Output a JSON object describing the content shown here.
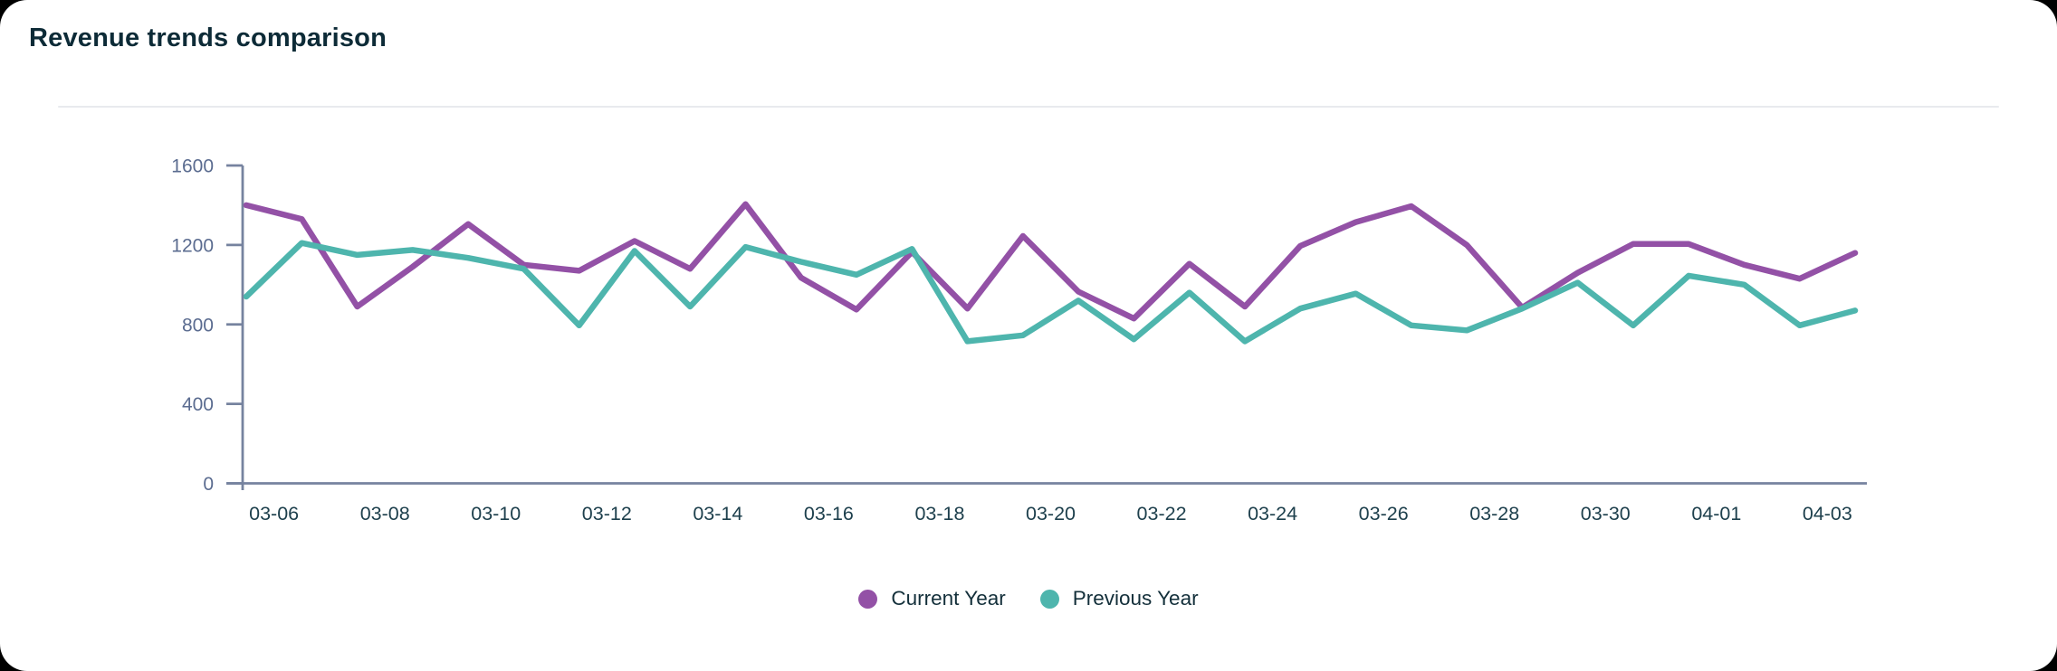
{
  "card": {
    "title": "Revenue trends comparison"
  },
  "chart_data": {
    "type": "line",
    "title": "Revenue trends comparison",
    "xlabel": "",
    "ylabel": "",
    "ylim": [
      0,
      1600
    ],
    "yticks": [
      0,
      400,
      800,
      1200,
      1600
    ],
    "grid": false,
    "legend_position": "bottom",
    "x_label_interval": 2,
    "x_tick_labels": [
      "03-06",
      "03-08",
      "03-10",
      "03-12",
      "03-14",
      "03-16",
      "03-18",
      "03-20",
      "03-22",
      "03-24",
      "03-26",
      "03-28",
      "03-30",
      "04-01",
      "04-03"
    ],
    "x": [
      "03-06",
      "03-07",
      "03-08",
      "03-09",
      "03-10",
      "03-11",
      "03-12",
      "03-13",
      "03-14",
      "03-15",
      "03-16",
      "03-17",
      "03-18",
      "03-19",
      "03-20",
      "03-21",
      "03-22",
      "03-23",
      "03-24",
      "03-25",
      "03-26",
      "03-27",
      "03-28",
      "03-29",
      "03-30",
      "03-31",
      "04-01",
      "04-02",
      "04-03",
      "04-04"
    ],
    "series": [
      {
        "name": "Current Year",
        "color": "#9351a6",
        "values": [
          1400,
          1330,
          890,
          1090,
          1305,
          1100,
          1070,
          1220,
          1080,
          1405,
          1035,
          875,
          1165,
          880,
          1245,
          965,
          830,
          1105,
          890,
          1195,
          1315,
          1395,
          1200,
          885,
          1060,
          1205,
          1205,
          1100,
          1030,
          1160
        ]
      },
      {
        "name": "Previous Year",
        "color": "#4eb5ad",
        "values": [
          940,
          1210,
          1150,
          1175,
          1135,
          1080,
          795,
          1170,
          890,
          1190,
          1115,
          1050,
          1180,
          715,
          745,
          920,
          725,
          960,
          715,
          880,
          955,
          795,
          770,
          880,
          1010,
          795,
          1045,
          1000,
          795,
          870
        ]
      }
    ],
    "axis_color": "#76839f",
    "y_tick_label_color": "#5b6c90",
    "x_tick_label_color": "#1e404d"
  }
}
